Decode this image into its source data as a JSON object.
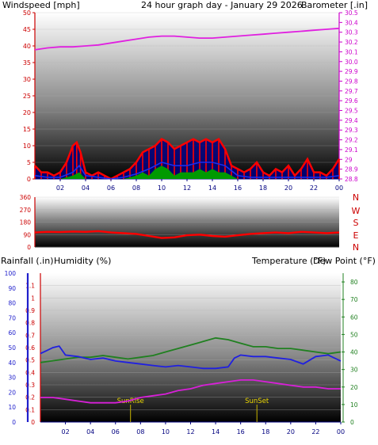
{
  "header": {
    "wind_title": "Windspeed [mph]",
    "period_title": "24 hour graph day - January 29 2026",
    "baro_title": "Barometer [.in]",
    "rain_title": "Rainfall (.in)",
    "humidity_title": "Humidity (%)",
    "temp_title": "Temperature (°F)",
    "dew_title": "Dew Point (°F)"
  },
  "colors": {
    "wind": "#ff0000",
    "gust_dark": "#000080",
    "wind_avg": "#1a2cf0",
    "green": "#009a00",
    "barometer": "#e020e0",
    "direction": "#ff0000",
    "rain": "#ff0000",
    "humidity": "#2020e0",
    "temperature": "#208020",
    "dewpoint": "#d820d8",
    "sun_marker": "#c8b400"
  },
  "chart_data": [
    {
      "type": "line",
      "id": "wind_barometer",
      "left_axis": {
        "label": "Windspeed [mph]",
        "ylim": [
          0,
          50
        ],
        "ticks": [
          0,
          5,
          10,
          15,
          20,
          25,
          30,
          35,
          40,
          45,
          50
        ]
      },
      "right_axis": {
        "label": "Barometer [.in]",
        "ylim": [
          28.8,
          30.5
        ],
        "ticks": [
          28.8,
          28.9,
          29.0,
          29.1,
          29.2,
          29.3,
          29.4,
          29.5,
          29.6,
          29.7,
          29.8,
          29.9,
          30.0,
          30.1,
          30.2,
          30.3,
          30.4,
          30.5
        ]
      },
      "x_ticks": [
        "02",
        "04",
        "06",
        "08",
        "10",
        "12",
        "14",
        "16",
        "18",
        "20",
        "22",
        "00"
      ],
      "xlim": [
        0,
        24
      ],
      "series": [
        {
          "name": "Windspeed",
          "axis": "left",
          "kind": "gust-area",
          "x": [
            0,
            0.5,
            1,
            1.5,
            2,
            2.5,
            3,
            3.3,
            3.6,
            4,
            4.5,
            5,
            5.5,
            6,
            6.5,
            7,
            7.5,
            8,
            8.5,
            9,
            9.5,
            10,
            10.5,
            11,
            11.5,
            12,
            12.5,
            13,
            13.5,
            14,
            14.5,
            15,
            15.5,
            16,
            16.5,
            17,
            17.5,
            18,
            18.5,
            19,
            19.5,
            20,
            20.5,
            21,
            21.5,
            22,
            22.5,
            23,
            23.5,
            24
          ],
          "values": [
            4,
            2,
            2,
            1,
            2,
            5,
            10,
            11,
            8,
            2,
            1,
            2,
            1,
            0,
            1,
            2,
            3,
            5,
            8,
            9,
            10,
            12,
            11,
            9,
            10,
            11,
            12,
            11,
            12,
            11,
            12,
            9,
            4,
            3,
            2,
            3,
            5,
            2,
            1,
            3,
            2,
            4,
            1,
            3,
            6,
            2,
            2,
            1,
            3,
            6
          ]
        },
        {
          "name": "Windspeed average",
          "axis": "left",
          "kind": "line",
          "x": [
            0,
            1,
            2,
            3,
            3.5,
            4,
            5,
            6,
            7,
            8,
            9,
            10,
            11,
            12,
            13,
            14,
            15,
            16,
            17,
            18,
            19,
            20,
            21,
            22,
            23,
            24
          ],
          "values": [
            1,
            0.5,
            0.5,
            2,
            4,
            1,
            0.5,
            0,
            0.5,
            1.5,
            3,
            5,
            4,
            4,
            5,
            5,
            4,
            1,
            0.5,
            0.5,
            0.5,
            0.5,
            0.5,
            0.5,
            0.5,
            1
          ]
        },
        {
          "name": "Windspeed minimum",
          "axis": "left",
          "kind": "area",
          "x": [
            0,
            1,
            2,
            3,
            3.5,
            4,
            5,
            6,
            7,
            8,
            8.5,
            9,
            9.5,
            10,
            10.5,
            11,
            11.5,
            12,
            12.5,
            13,
            13.5,
            14,
            14.5,
            15,
            15.5,
            16,
            17,
            18,
            19,
            20,
            21,
            22,
            23,
            24
          ],
          "values": [
            0,
            0,
            0,
            1,
            2,
            0,
            0,
            0,
            0,
            1,
            2,
            1,
            3,
            4,
            3,
            1,
            2,
            2,
            2,
            3,
            2,
            3,
            2,
            2,
            1,
            0,
            0,
            0,
            0,
            0,
            0,
            0,
            0,
            0
          ]
        },
        {
          "name": "Barometer",
          "axis": "right",
          "kind": "line",
          "x": [
            0,
            1,
            2,
            3,
            4,
            5,
            6,
            7,
            8,
            9,
            10,
            11,
            12,
            13,
            14,
            15,
            16,
            17,
            18,
            19,
            20,
            21,
            22,
            23,
            24
          ],
          "values": [
            30.12,
            30.14,
            30.15,
            30.15,
            30.16,
            30.17,
            30.19,
            30.21,
            30.23,
            30.25,
            30.26,
            30.26,
            30.25,
            30.24,
            30.24,
            30.25,
            30.26,
            30.27,
            30.28,
            30.29,
            30.3,
            30.31,
            30.32,
            30.33,
            30.34
          ]
        }
      ]
    },
    {
      "type": "line",
      "id": "wind_direction",
      "left_axis": {
        "ylim": [
          0,
          360
        ],
        "ticks": [
          0,
          90,
          180,
          270,
          360
        ]
      },
      "right_labels": [
        "N",
        "W",
        "S",
        "E",
        "N"
      ],
      "xlim": [
        0,
        24
      ],
      "series": [
        {
          "name": "Wind direction",
          "axis": "left",
          "kind": "line",
          "x": [
            0,
            1,
            2,
            3,
            4,
            5,
            6,
            7,
            8,
            9,
            10,
            11,
            12,
            13,
            14,
            15,
            16,
            17,
            18,
            19,
            20,
            21,
            22,
            23,
            24
          ],
          "values": [
            105,
            110,
            108,
            112,
            110,
            115,
            105,
            100,
            95,
            80,
            65,
            70,
            85,
            90,
            80,
            75,
            85,
            95,
            100,
            105,
            100,
            110,
            105,
            100,
            105
          ]
        }
      ]
    },
    {
      "type": "line",
      "id": "temp_humidity",
      "axis_rain": {
        "label": "Rainfall (.in)",
        "ylim": [
          0,
          1.2
        ],
        "ticks": [
          0,
          0.1,
          0.2,
          0.3,
          0.4,
          0.5,
          0.6,
          0.7,
          0.8,
          0.9,
          1.0,
          1.1
        ]
      },
      "axis_humidity": {
        "label": "Humidity (%)",
        "ylim": [
          0,
          100
        ],
        "ticks": [
          0,
          10,
          20,
          30,
          40,
          50,
          60,
          70,
          80,
          90,
          100
        ]
      },
      "axis_temp": {
        "label": "Temperature (°F)",
        "ylim": [
          0,
          85
        ],
        "ticks": [
          0,
          10,
          20,
          30,
          40,
          50,
          60,
          70,
          80
        ]
      },
      "x_ticks": [
        "02",
        "04",
        "06",
        "08",
        "10",
        "12",
        "14",
        "16",
        "18",
        "20",
        "22",
        "00"
      ],
      "xlim": [
        0,
        24
      ],
      "annotations": [
        {
          "label": "SunRise",
          "x": 7.2
        },
        {
          "label": "SunSet",
          "x": 17.3
        }
      ],
      "series": [
        {
          "name": "Temperature",
          "axis": "temp",
          "x": [
            0,
            1,
            2,
            3,
            4,
            5,
            6,
            7,
            8,
            9,
            10,
            11,
            12,
            13,
            14,
            15,
            16,
            17,
            18,
            19,
            20,
            21,
            22,
            23,
            24
          ],
          "values": [
            34,
            35,
            36,
            37,
            37,
            38,
            37,
            36,
            37,
            38,
            40,
            42,
            44,
            46,
            48,
            47,
            45,
            43,
            43,
            42,
            42,
            41,
            40,
            39,
            40
          ]
        },
        {
          "name": "Humidity",
          "axis": "humidity",
          "x": [
            0,
            0.5,
            1,
            1.5,
            2,
            3,
            4,
            5,
            6,
            7,
            8,
            9,
            10,
            11,
            12,
            13,
            14,
            15,
            15.5,
            16,
            17,
            18,
            19,
            20,
            21,
            22,
            23,
            24
          ],
          "values": [
            46,
            48,
            50,
            51,
            45,
            44,
            42,
            43,
            41,
            40,
            39,
            38,
            37,
            38,
            37,
            36,
            36,
            37,
            43,
            45,
            44,
            44,
            43,
            42,
            39,
            44,
            45,
            41
          ]
        },
        {
          "name": "Dew Point",
          "axis": "temp",
          "x": [
            0,
            1,
            2,
            3,
            4,
            5,
            6,
            7,
            8,
            9,
            10,
            11,
            12,
            13,
            14,
            15,
            16,
            17,
            18,
            19,
            20,
            21,
            22,
            23,
            24
          ],
          "values": [
            14,
            14,
            13,
            12,
            11,
            11,
            11,
            12,
            14,
            15,
            16,
            18,
            19,
            21,
            22,
            23,
            24,
            24,
            23,
            22,
            21,
            20,
            20,
            19,
            19
          ]
        }
      ]
    }
  ]
}
